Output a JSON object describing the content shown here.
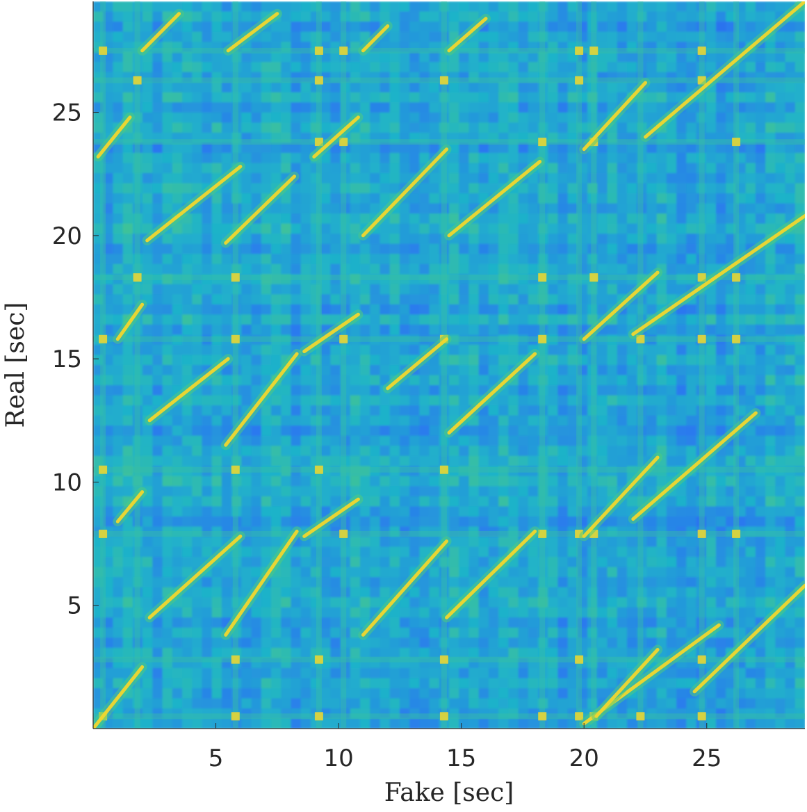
{
  "chart_data": {
    "type": "heatmap",
    "title": "",
    "xlabel": "Fake [sec]",
    "ylabel": "Real [sec]",
    "xlim": [
      0,
      29
    ],
    "ylim": [
      0,
      29.5
    ],
    "xticks": [
      5,
      10,
      15,
      20,
      25
    ],
    "yticks": [
      5,
      10,
      15,
      20,
      25
    ],
    "xtick_labels": [
      "5",
      "10",
      "15",
      "20",
      "25"
    ],
    "ytick_labels": [
      "5",
      "10",
      "15",
      "20",
      "25"
    ],
    "colormap": "parula",
    "colors": {
      "low": "#3a3fd4",
      "mid_low": "#2b77f0",
      "mid": "#1fb3c9",
      "mid_high": "#52cc7a",
      "high": "#f2d72e"
    },
    "grid": false,
    "legend": "none",
    "diagonal_segments": [
      {
        "x": [
          0,
          2
        ],
        "y": [
          0,
          2.5
        ]
      },
      {
        "x": [
          1,
          2
        ],
        "y": [
          8.4,
          9.6
        ]
      },
      {
        "x": [
          2.3,
          6
        ],
        "y": [
          4.5,
          7.8
        ]
      },
      {
        "x": [
          5.4,
          8.3
        ],
        "y": [
          3.8,
          8
        ]
      },
      {
        "x": [
          8.6,
          10.8
        ],
        "y": [
          7.8,
          9.3
        ]
      },
      {
        "x": [
          11,
          14.4
        ],
        "y": [
          3.8,
          7.6
        ]
      },
      {
        "x": [
          14.4,
          18
        ],
        "y": [
          4.5,
          8
        ]
      },
      {
        "x": [
          20,
          25.5
        ],
        "y": [
          0.2,
          4.2
        ]
      },
      {
        "x": [
          20.5,
          23
        ],
        "y": [
          0.5,
          3.2
        ]
      },
      {
        "x": [
          24.5,
          29
        ],
        "y": [
          1.5,
          5.8
        ]
      },
      {
        "x": [
          20,
          23
        ],
        "y": [
          7.8,
          11
        ]
      },
      {
        "x": [
          22,
          27
        ],
        "y": [
          8.5,
          12.8
        ]
      },
      {
        "x": [
          2.3,
          5.5
        ],
        "y": [
          12.5,
          15
        ]
      },
      {
        "x": [
          5.4,
          8.3
        ],
        "y": [
          11.5,
          15.2
        ]
      },
      {
        "x": [
          8.6,
          10.8
        ],
        "y": [
          15.3,
          16.8
        ]
      },
      {
        "x": [
          12,
          14.4
        ],
        "y": [
          13.8,
          15.8
        ]
      },
      {
        "x": [
          14.5,
          18
        ],
        "y": [
          12,
          15.2
        ]
      },
      {
        "x": [
          1,
          2
        ],
        "y": [
          15.8,
          17.2
        ]
      },
      {
        "x": [
          20,
          23
        ],
        "y": [
          15.8,
          18.5
        ]
      },
      {
        "x": [
          22,
          29
        ],
        "y": [
          16,
          20.8
        ]
      },
      {
        "x": [
          2.2,
          6
        ],
        "y": [
          19.8,
          22.8
        ]
      },
      {
        "x": [
          5.4,
          8.2
        ],
        "y": [
          19.7,
          22.4
        ]
      },
      {
        "x": [
          9,
          10.8
        ],
        "y": [
          23.2,
          24.8
        ]
      },
      {
        "x": [
          11,
          14.4
        ],
        "y": [
          20,
          23.5
        ]
      },
      {
        "x": [
          14.5,
          18.2
        ],
        "y": [
          20,
          23
        ]
      },
      {
        "x": [
          0.2,
          1.5
        ],
        "y": [
          23.2,
          24.8
        ]
      },
      {
        "x": [
          20,
          22.5
        ],
        "y": [
          23.5,
          26.2
        ]
      },
      {
        "x": [
          22.5,
          29
        ],
        "y": [
          24,
          29.5
        ]
      },
      {
        "x": [
          2,
          3.5
        ],
        "y": [
          27.5,
          29
        ]
      },
      {
        "x": [
          5.5,
          7.5
        ],
        "y": [
          27.5,
          29
        ]
      },
      {
        "x": [
          11,
          12
        ],
        "y": [
          27.5,
          28.5
        ]
      },
      {
        "x": [
          14.5,
          16
        ],
        "y": [
          27.5,
          28.8
        ]
      }
    ],
    "block_bands_x": [
      0.4,
      1.8,
      5.8,
      9.2,
      10.2,
      14.3,
      18.3,
      19.8,
      20.4,
      22.3,
      24.8,
      26.2
    ],
    "block_bands_y": [
      0.5,
      2.8,
      7.9,
      10.5,
      15.8,
      18.3,
      23.8,
      26.3,
      27.5
    ]
  }
}
